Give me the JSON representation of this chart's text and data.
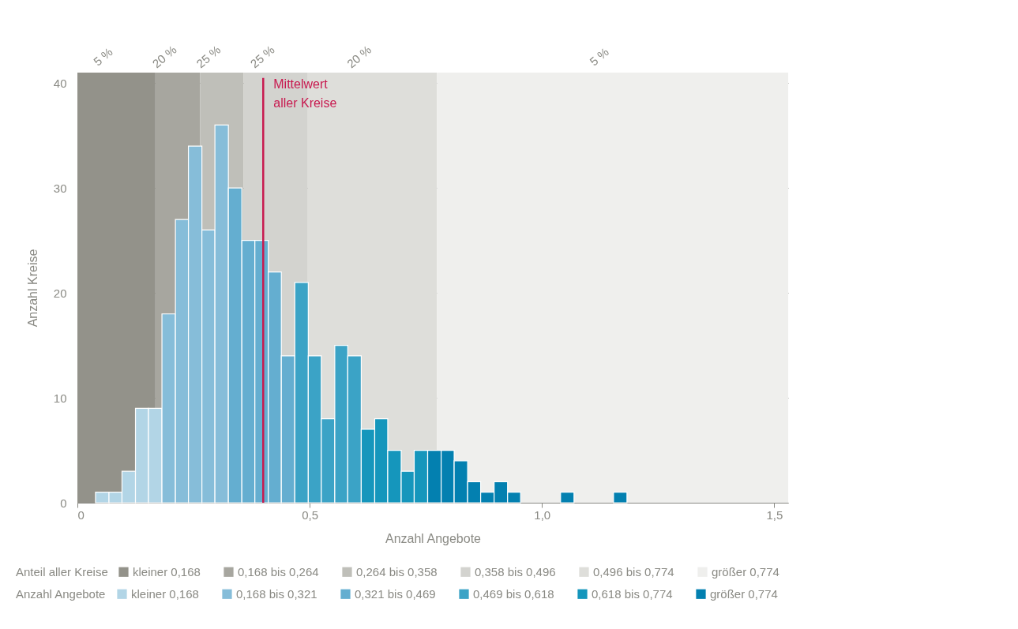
{
  "chart_data": {
    "type": "histogram",
    "xlabel": "Anzahl Angebote",
    "ylabel": "Anzahl Kreise",
    "legend_title": "Anzahl Angebote",
    "bins": [
      0.039,
      0.068,
      0.096,
      0.125,
      0.153,
      0.182,
      0.211,
      0.239,
      0.268,
      0.296,
      0.325,
      0.354,
      0.382,
      0.411,
      0.439,
      0.468,
      0.497,
      0.525,
      0.554,
      0.582,
      0.611,
      0.64,
      0.668,
      0.697,
      0.725,
      0.754,
      0.783,
      0.811,
      0.84,
      0.868,
      0.897,
      0.926,
      0.954,
      1.04,
      1.069,
      1.154,
      1.183
    ],
    "series": [
      {
        "name": "kleiner 0,168",
        "color": "#b2d5e6",
        "values": [
          1,
          1,
          3,
          9,
          9,
          null,
          null,
          null,
          null,
          null,
          null,
          null,
          null,
          null,
          null,
          null,
          null,
          null,
          null,
          null,
          null,
          null,
          null,
          null,
          null,
          null,
          null,
          null,
          null,
          null,
          null,
          null,
          null,
          null,
          null,
          null
        ]
      },
      {
        "name": "0,168 bis 0,321",
        "color": "#86bdd9",
        "values": [
          null,
          null,
          null,
          null,
          null,
          18,
          27,
          34,
          26,
          36,
          null,
          null,
          null,
          null,
          null,
          null,
          null,
          null,
          null,
          null,
          null,
          null,
          null,
          null,
          null,
          null,
          null,
          null,
          null,
          null,
          null,
          null,
          null,
          null,
          null,
          null
        ]
      },
      {
        "name": "0,321 bis 0,469",
        "color": "#64aed0",
        "values": [
          null,
          null,
          null,
          null,
          null,
          null,
          null,
          null,
          null,
          null,
          30,
          25,
          25,
          22,
          14,
          null,
          null,
          null,
          null,
          null,
          null,
          null,
          null,
          null,
          null,
          null,
          null,
          null,
          null,
          null,
          null,
          null,
          null,
          null,
          null,
          null
        ]
      },
      {
        "name": "0,469 bis 0,618",
        "color": "#3ba3c6",
        "values": [
          null,
          null,
          null,
          null,
          null,
          null,
          null,
          null,
          null,
          null,
          null,
          null,
          null,
          null,
          null,
          21,
          14,
          8,
          15,
          14,
          null,
          null,
          null,
          null,
          null,
          null,
          null,
          null,
          null,
          null,
          null,
          null,
          null,
          null,
          null,
          null
        ]
      },
      {
        "name": "0,618 bis 0,774",
        "color": "#1596bc",
        "values": [
          null,
          null,
          null,
          null,
          null,
          null,
          null,
          null,
          null,
          null,
          null,
          null,
          null,
          null,
          null,
          null,
          null,
          null,
          null,
          null,
          7,
          8,
          5,
          3,
          5,
          null,
          null,
          null,
          null,
          null,
          null,
          null,
          null,
          null,
          null,
          null
        ]
      },
      {
        "name": "größer 0,774",
        "color": "#0380b0",
        "values": [
          null,
          null,
          null,
          null,
          null,
          null,
          null,
          null,
          null,
          null,
          null,
          null,
          null,
          null,
          null,
          null,
          null,
          null,
          null,
          null,
          null,
          null,
          null,
          null,
          null,
          5,
          5,
          4,
          2,
          1,
          2,
          1,
          0,
          1,
          0,
          1
        ]
      }
    ],
    "xlim": [
      0,
      1.53
    ],
    "ylim": [
      0,
      41
    ],
    "xticks": [
      0,
      {
        "value": 0.5,
        "label": "0,5"
      },
      {
        "value": 1,
        "label": "1,0"
      },
      {
        "value": 1.5,
        "label": "1,5"
      }
    ],
    "yticks": [
      0,
      10,
      20,
      30,
      40
    ],
    "grid": "y",
    "legend": "bottom",
    "bands": [
      {
        "axis": "x",
        "from": 0,
        "to": 0.168,
        "label": "kleiner 0,168",
        "color": "#93928a"
      },
      {
        "axis": "x",
        "from": 0.168,
        "to": 0.264,
        "label": "0,168 bis 0,264",
        "color": "#a7a69f"
      },
      {
        "axis": "x",
        "from": 0.264,
        "to": 0.358,
        "label": "0,264 bis 0,358",
        "color": "#bfbfb9"
      },
      {
        "axis": "x",
        "from": 0.358,
        "to": 0.496,
        "label": "0,358 bis 0,496",
        "color": "#d3d3cf"
      },
      {
        "axis": "x",
        "from": 0.496,
        "to": 0.774,
        "label": "0,496 bis 0,774",
        "color": "#dededa"
      },
      {
        "axis": "x",
        "from": 0.774,
        "to": 1.53,
        "label": "größer 0,774",
        "color": "#efefed"
      }
    ],
    "ref_lines": [
      {
        "axis": "x",
        "value": 0.4,
        "label": "Mittelwert\naller Kreise",
        "color": "#c8194f"
      }
    ],
    "annotations": [
      "Anteil aller Kreise",
      "5 %",
      "20 %",
      "25 %",
      "25 %",
      "20 %",
      "5 %"
    ]
  }
}
